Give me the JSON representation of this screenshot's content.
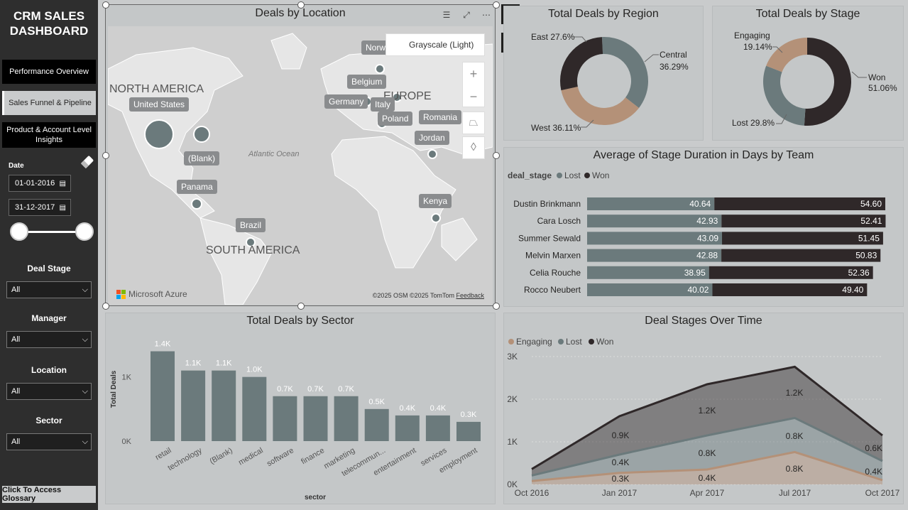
{
  "sidebar": {
    "title_line1": "CRM SALES",
    "title_line2": "DASHBOARD",
    "nav": [
      {
        "label": "Performance Overview"
      },
      {
        "label": "Sales Funnel & Pipeline"
      },
      {
        "label": "Product & Account Level Insights"
      }
    ],
    "date_label": "Date",
    "date_start": "01-01-2016",
    "date_end": "31-12-2017",
    "filters": [
      {
        "label": "Deal Stage",
        "value": "All"
      },
      {
        "label": "Manager",
        "value": "All"
      },
      {
        "label": "Location",
        "value": "All"
      },
      {
        "label": "Sector",
        "value": "All"
      }
    ],
    "glossary_label": "Click To Access Glossary"
  },
  "map": {
    "title": "Deals by Location",
    "style_label": "Grayscale (Light)",
    "regions": [
      "NORTH AMERICA",
      "SOUTH AMERICA",
      "EUROPE"
    ],
    "ocean": "Atlantic Ocean",
    "locations": [
      "United States",
      "(Blank)",
      "Panama",
      "Brazil",
      "Norw",
      "Belgium",
      "Germany",
      "Italy",
      "Poland",
      "Romania",
      "Jordan",
      "Kenya"
    ],
    "brand": "Microsoft Azure",
    "attribution": "©2025 OSM  ©2025 TomTom",
    "feedback": "Feedback"
  },
  "region_chart": {
    "title": "Total Deals by Region",
    "chart_data": {
      "type": "pie",
      "categories": [
        "East",
        "Central",
        "West"
      ],
      "values": [
        27.6,
        36.29,
        36.11
      ],
      "labels": [
        "East 27.6%",
        "Central",
        "36.29%",
        "West 36.11%"
      ],
      "colors": [
        "#2f2829",
        "#6b7a7c",
        "#b49178"
      ]
    }
  },
  "stage_chart": {
    "title": "Total Deals by Stage",
    "chart_data": {
      "type": "pie",
      "categories": [
        "Won",
        "Lost",
        "Engaging"
      ],
      "values": [
        51.06,
        29.8,
        19.14
      ],
      "labels": [
        "Won",
        "51.06%",
        "Lost 29.8%",
        "Engaging",
        "19.14%"
      ],
      "colors": [
        "#2f2829",
        "#6b7a7c",
        "#b49178"
      ]
    }
  },
  "duration_chart": {
    "title": "Average of Stage Duration in Days by Team",
    "legend_title": "deal_stage",
    "chart_data": {
      "type": "bar",
      "categories": [
        "Dustin Brinkmann",
        "Cara Losch",
        "Summer Sewald",
        "Melvin Marxen",
        "Celia Rouche",
        "Rocco Neubert"
      ],
      "series": [
        {
          "name": "Lost",
          "values": [
            40.64,
            42.93,
            43.09,
            42.88,
            38.95,
            40.02
          ],
          "labels": [
            "40.64",
            "42.93",
            "43.09",
            "42.88",
            "38.95",
            "40.02"
          ],
          "color": "#6b7a7c"
        },
        {
          "name": "Won",
          "values": [
            54.6,
            52.41,
            51.45,
            50.83,
            52.36,
            49.4
          ],
          "labels": [
            "54.60",
            "52.41",
            "51.45",
            "50.83",
            "52.36",
            "49.40"
          ],
          "color": "#2f2829"
        }
      ],
      "stacked": true,
      "xlim": [
        0,
        95.24
      ]
    }
  },
  "sector_chart": {
    "title": "Total Deals by Sector",
    "chart_data": {
      "type": "bar",
      "categories": [
        "retail",
        "technology",
        "(Blank)",
        "medical",
        "software",
        "finance",
        "marketing",
        "telecommun...",
        "entertainment",
        "services",
        "employment"
      ],
      "values": [
        1400,
        1100,
        1100,
        1000,
        700,
        700,
        700,
        500,
        400,
        400,
        300
      ],
      "value_labels": [
        "1.4K",
        "1.1K",
        "1.1K",
        "1.0K",
        "0.7K",
        "0.7K",
        "0.7K",
        "0.5K",
        "0.4K",
        "0.4K",
        "0.3K"
      ],
      "xlabel": "sector",
      "ylabel": "Total Deals",
      "yticks": [
        "0K",
        "1K"
      ],
      "ylim": [
        0,
        1550
      ],
      "color": "#6b7a7c"
    }
  },
  "time_chart": {
    "title": "Deal Stages Over Time",
    "chart_data": {
      "type": "area",
      "stacked": true,
      "x": [
        "Oct 2016",
        "Jan 2017",
        "Apr 2017",
        "Jul 2017",
        "Oct 2017"
      ],
      "yticks": [
        "0K",
        "1K",
        "2K",
        "3K"
      ],
      "ylim": [
        0,
        3000
      ],
      "series": [
        {
          "name": "Engaging",
          "values": [
            80,
            270,
            350,
            760,
            100
          ],
          "color": "#b49178"
        },
        {
          "name": "Lost",
          "values": [
            130,
            430,
            800,
            800,
            450
          ],
          "color": "#6b7a7c"
        },
        {
          "name": "Won",
          "values": [
            150,
            900,
            1200,
            1200,
            600
          ],
          "color": "#2f2829"
        }
      ],
      "labels": [
        "0.3K",
        "0.4K",
        "0.9K",
        "0.4K",
        "0.8K",
        "1.2K",
        "0.8K",
        "0.8K",
        "1.2K",
        "0.4K",
        "0.6K"
      ]
    }
  }
}
